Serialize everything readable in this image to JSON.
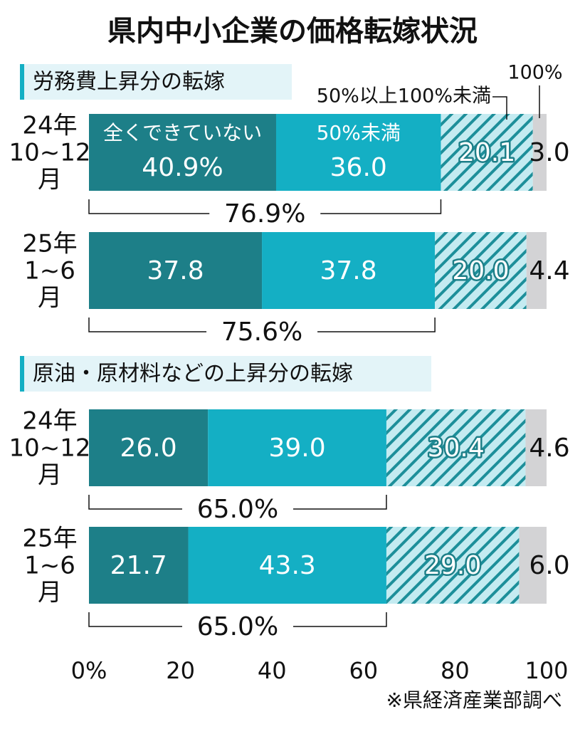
{
  "chart_data": {
    "type": "bar",
    "orientation": "horizontal",
    "stacked": true,
    "title": "県内中小企業の価格転嫁状況",
    "series": [
      {
        "name": "全くできていない",
        "color": "#1d7f88",
        "hatch": false
      },
      {
        "name": "50%未満",
        "color": "#14afc4",
        "hatch": false
      },
      {
        "name": "50%以上100%未満",
        "color": "#c4ebf1",
        "hatch": true
      },
      {
        "name": "100%",
        "color": "#d3d3d5",
        "hatch": false
      }
    ],
    "panels": [
      {
        "title": "労務費上昇分の転嫁",
        "categories": [
          [
            "24年",
            "10~12",
            "月"
          ],
          [
            "25年",
            "1~6",
            "月"
          ]
        ],
        "values": [
          [
            40.9,
            36.0,
            20.1,
            3.0
          ],
          [
            37.8,
            37.8,
            20.0,
            4.4
          ]
        ],
        "value_labels": [
          [
            "40.9%",
            "36.0",
            "20.1",
            "3.0"
          ],
          [
            "37.8",
            "37.8",
            "20.0",
            "4.4"
          ]
        ],
        "totals": [
          76.9,
          75.6
        ],
        "total_labels": [
          "76.9%",
          "75.6%"
        ]
      },
      {
        "title": "原油・原材料などの上昇分の転嫁",
        "categories": [
          [
            "24年",
            "10~12",
            "月"
          ],
          [
            "25年",
            "1~6",
            "月"
          ]
        ],
        "values": [
          [
            26.0,
            39.0,
            30.4,
            4.6
          ],
          [
            21.7,
            43.3,
            29.0,
            6.0
          ]
        ],
        "value_labels": [
          [
            "26.0",
            "39.0",
            "30.4",
            "4.6"
          ],
          [
            "21.7",
            "43.3",
            "29.0",
            "6.0"
          ]
        ],
        "totals": [
          65.0,
          65.0
        ],
        "total_labels": [
          "65.0%",
          "65.0%"
        ]
      }
    ],
    "xlim": [
      0,
      100
    ],
    "xticks": [
      {
        "value": 0,
        "label": "0%"
      },
      20,
      40,
      60,
      80,
      100
    ],
    "source": "※県経済産業部調べ"
  }
}
